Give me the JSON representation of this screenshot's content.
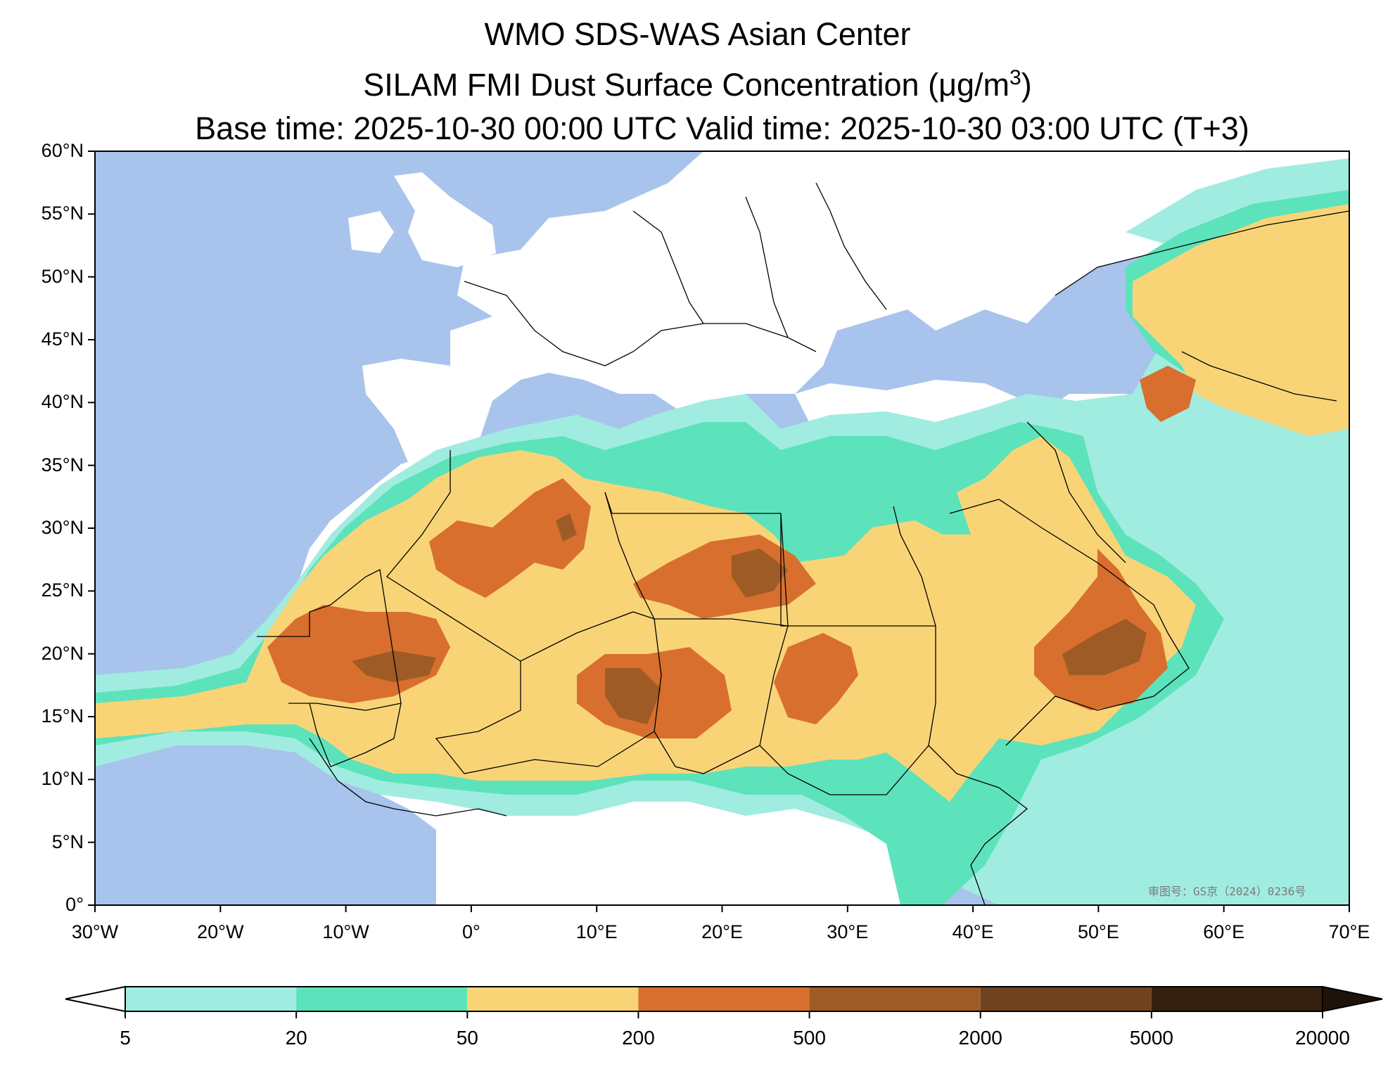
{
  "title": {
    "line1": "WMO SDS-WAS Asian Center",
    "line2_prefix": "SILAM FMI Dust Surface Concentration (",
    "line2_unit_mu": "μ",
    "line2_unit_rest": "g/m",
    "line2_sup": "3",
    "line2_suffix": ")",
    "line3": "Base time: 2025-10-30 00:00 UTC Valid time: 2025-10-30 03:00 UTC (T+3)"
  },
  "axes": {
    "lat_labels": [
      "60°N",
      "55°N",
      "50°N",
      "45°N",
      "40°N",
      "35°N",
      "30°N",
      "25°N",
      "20°N",
      "15°N",
      "10°N",
      "5°N",
      "0°"
    ],
    "lon_labels": [
      "30°W",
      "20°W",
      "10°W",
      "0°",
      "10°E",
      "20°E",
      "30°E",
      "40°E",
      "50°E",
      "60°E",
      "70°E"
    ],
    "lat_range": [
      0,
      60
    ],
    "lon_range": [
      -30,
      70
    ]
  },
  "colorbar": {
    "levels": [
      "5",
      "20",
      "50",
      "200",
      "500",
      "2000",
      "5000",
      "20000"
    ],
    "colors": [
      "#a1ece0",
      "#5ce3bc",
      "#f9d477",
      "#d86f2e",
      "#9e5b26",
      "#6f4220",
      "#35200f"
    ],
    "extend": "both",
    "under_color": "#ffffff",
    "over_color": "#1e120a"
  },
  "map_colors": {
    "ocean": "#a8c4ec",
    "land": "#ffffff",
    "border": "#000000",
    "river": "#a8c4ec"
  },
  "watermark": "审图号：GS京（2024）0236号"
}
